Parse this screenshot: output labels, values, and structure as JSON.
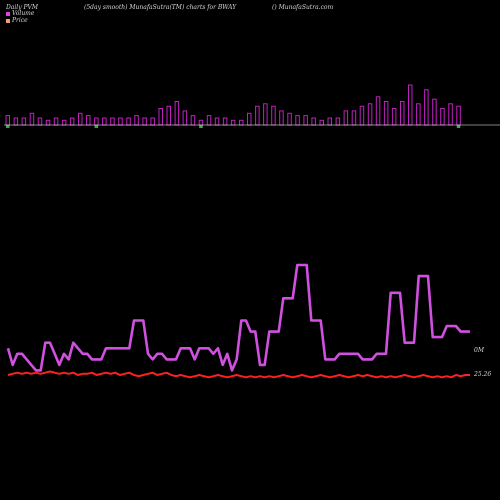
{
  "header": {
    "left": "Daily PVM",
    "mid": "(5day smooth) MunafaSutra(TM) charts for BWAY",
    "right": "() MunafaSutra.com"
  },
  "legend": [
    {
      "label": "Volume",
      "color": "#e040e0"
    },
    {
      "label": "Price",
      "color": "#f0a070"
    }
  ],
  "colors": {
    "volume_up": "#c020c0",
    "volume_down": "#30b040",
    "smooth_volume": "#d050e0",
    "price": "#ff2020",
    "baseline": "#ffffff"
  },
  "chart_data": {
    "type": "bar",
    "title": "",
    "x": [
      1,
      2,
      3,
      4,
      5,
      6,
      7,
      8,
      9,
      10,
      11,
      12,
      13,
      14,
      15,
      16,
      17,
      18,
      19,
      20,
      21,
      22,
      23,
      24,
      25,
      26,
      27,
      28,
      29,
      30,
      31,
      32,
      33,
      34,
      35,
      36,
      37,
      38,
      39,
      40,
      41,
      42,
      43,
      44,
      45,
      46,
      47,
      48,
      49,
      50,
      51,
      52,
      53,
      54,
      55,
      56,
      57,
      58,
      59,
      60,
      61,
      62,
      63,
      64,
      65,
      66,
      67,
      68,
      69,
      70,
      71,
      72,
      73,
      74,
      75,
      76,
      77,
      78,
      79,
      80,
      81,
      82,
      83,
      84,
      85,
      86,
      87,
      88,
      89,
      90,
      91,
      92,
      93,
      94,
      95,
      96,
      97,
      98,
      99,
      100
    ],
    "series": [
      {
        "name": "Volume",
        "values": [
          5,
          2,
          4,
          4,
          3,
          2,
          1,
          1,
          6,
          6,
          4,
          2,
          4,
          3,
          6,
          5,
          4,
          4,
          3,
          3,
          3,
          5,
          5,
          5,
          5,
          5,
          5,
          10,
          10,
          10,
          4,
          3,
          4,
          4,
          3,
          3,
          3,
          5,
          5,
          5,
          3,
          5,
          5,
          5,
          4,
          5,
          2,
          4,
          1,
          3,
          10,
          10,
          8,
          8,
          2,
          2,
          8,
          8,
          8,
          14,
          14,
          14,
          20,
          20,
          20,
          10,
          10,
          10,
          3,
          3,
          3,
          4,
          4,
          4,
          4,
          4,
          3,
          3,
          3,
          4,
          4,
          4,
          15,
          15,
          15,
          6,
          6,
          6,
          18,
          18,
          18,
          7,
          7,
          7,
          9,
          9,
          9,
          8,
          8,
          8
        ]
      },
      {
        "name": "Price",
        "values": [
          25.26,
          25.27,
          25.28,
          25.27,
          25.28,
          25.27,
          25.28,
          25.27,
          25.28,
          25.29,
          25.28,
          25.27,
          25.28,
          25.27,
          25.28,
          25.26,
          25.27,
          25.27,
          25.28,
          25.26,
          25.27,
          25.28,
          25.27,
          25.28,
          25.26,
          25.27,
          25.28,
          25.26,
          25.25,
          25.26,
          25.27,
          25.28,
          25.26,
          25.27,
          25.28,
          25.26,
          25.25,
          25.26,
          25.25,
          25.24,
          25.25,
          25.26,
          25.25,
          25.24,
          25.25,
          25.26,
          25.25,
          25.24,
          25.25,
          25.26,
          25.25,
          25.24,
          25.25,
          25.24,
          25.25,
          25.24,
          25.25,
          25.24,
          25.25,
          25.26,
          25.25,
          25.24,
          25.25,
          25.26,
          25.25,
          25.24,
          25.25,
          25.26,
          25.25,
          25.24,
          25.25,
          25.26,
          25.25,
          25.24,
          25.25,
          25.26,
          25.25,
          25.26,
          25.25,
          25.24,
          25.25,
          25.24,
          25.25,
          25.24,
          25.25,
          25.26,
          25.25,
          25.24,
          25.25,
          25.26,
          25.25,
          25.24,
          25.25,
          25.24,
          25.25,
          25.24,
          25.26,
          25.25,
          25.26,
          25.26
        ]
      }
    ],
    "bars": [
      {
        "v": 4,
        "d": 1
      },
      {
        "v": 3,
        "d": 0
      },
      {
        "v": 3,
        "d": 0
      },
      {
        "v": 5,
        "d": 0
      },
      {
        "v": 3,
        "d": 0
      },
      {
        "v": 2,
        "d": 0
      },
      {
        "v": 3,
        "d": 0
      },
      {
        "v": 2,
        "d": 0
      },
      {
        "v": 3,
        "d": 0
      },
      {
        "v": 5,
        "d": 0
      },
      {
        "v": 4,
        "d": 0
      },
      {
        "v": 3,
        "d": 1
      },
      {
        "v": 3,
        "d": 0
      },
      {
        "v": 3,
        "d": 0
      },
      {
        "v": 3,
        "d": 0
      },
      {
        "v": 3,
        "d": 0
      },
      {
        "v": 4,
        "d": 0
      },
      {
        "v": 3,
        "d": 0
      },
      {
        "v": 3,
        "d": 0
      },
      {
        "v": 7,
        "d": 0
      },
      {
        "v": 8,
        "d": 0
      },
      {
        "v": 10,
        "d": 0
      },
      {
        "v": 6,
        "d": 0
      },
      {
        "v": 4,
        "d": 0
      },
      {
        "v": 2,
        "d": 1
      },
      {
        "v": 4,
        "d": 0
      },
      {
        "v": 3,
        "d": 0
      },
      {
        "v": 3,
        "d": 0
      },
      {
        "v": 2,
        "d": 0
      },
      {
        "v": 2,
        "d": 0
      },
      {
        "v": 5,
        "d": 0
      },
      {
        "v": 8,
        "d": 0
      },
      {
        "v": 9,
        "d": 0
      },
      {
        "v": 8,
        "d": 0
      },
      {
        "v": 6,
        "d": 0
      },
      {
        "v": 5,
        "d": 0
      },
      {
        "v": 4,
        "d": 0
      },
      {
        "v": 4,
        "d": 0
      },
      {
        "v": 3,
        "d": 0
      },
      {
        "v": 2,
        "d": 0
      },
      {
        "v": 3,
        "d": 0
      },
      {
        "v": 3,
        "d": 0
      },
      {
        "v": 6,
        "d": 0
      },
      {
        "v": 6,
        "d": 0
      },
      {
        "v": 8,
        "d": 0
      },
      {
        "v": 9,
        "d": 0
      },
      {
        "v": 12,
        "d": 0
      },
      {
        "v": 10,
        "d": 0
      },
      {
        "v": 7,
        "d": 0
      },
      {
        "v": 10,
        "d": 0
      },
      {
        "v": 17,
        "d": 0
      },
      {
        "v": 9,
        "d": 0
      },
      {
        "v": 15,
        "d": 0
      },
      {
        "v": 11,
        "d": 0
      },
      {
        "v": 7,
        "d": 0
      },
      {
        "v": 9,
        "d": 0
      },
      {
        "v": 8,
        "d": 1
      }
    ],
    "price_label": "25.26",
    "volume_label": "0M",
    "ylim": [
      0,
      20
    ],
    "grid": false,
    "legend_position": "top-left"
  }
}
